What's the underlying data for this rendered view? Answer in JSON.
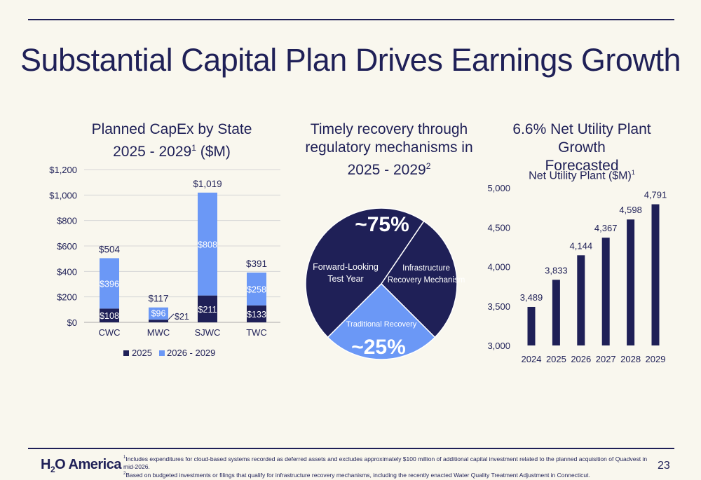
{
  "slide": {
    "title": "Substantial Capital Plan Drives Earnings Growth",
    "page_number": "23",
    "logo": {
      "part1": "H",
      "sub": "2",
      "part2": "O America"
    }
  },
  "colors": {
    "navy": "#1f2057",
    "light_blue": "#6b98f6",
    "background": "#f9f7ee"
  },
  "capex": {
    "title_line1": "Planned CapEx by State",
    "title_line2_pre": "2025 - 2029",
    "title_sup": "1",
    "title_line2_post": " ($M)"
  },
  "recovery": {
    "title_line1": "Timely recovery through",
    "title_line2": "regulatory mechanisms in",
    "title_line3_pre": "2025 - 2029",
    "title_sup": "2",
    "big_top": "~75%",
    "big_bottom": "~25%",
    "label_forward_1": "Forward-Looking",
    "label_forward_2": "Test Year",
    "label_infra_1": "Infrastructure",
    "label_infra_2": "Recovery Mechanism",
    "label_traditional": "Traditional Recovery"
  },
  "plant": {
    "title_line1": "6.6% Net Utility Plant Growth",
    "title_line2": "Forecasted",
    "subtitle_pre": "Net Utility Plant ($M)",
    "subtitle_sup": "1"
  },
  "footnotes": {
    "n1_sup": "1",
    "n1_text": "Includes expenditures for cloud-based systems recorded as deferred assets and excludes approximately $100 million of additional capital investment related to the planned acquisition of Quadvest in mid-2026.",
    "n2_sup": "2",
    "n2_text": "Based on budgeted investments or filings that qualify for infrastructure recovery mechanisms, including the recently enacted Water Quality Treatment Adjustment in Connecticut."
  },
  "chart_data": [
    {
      "type": "bar",
      "stacked": true,
      "categories": [
        "CWC",
        "MWC",
        "SJWC",
        "TWC"
      ],
      "series": [
        {
          "name": "2025",
          "values": [
            108,
            21,
            211,
            133
          ],
          "labels": [
            "$108",
            "$21",
            "$211",
            "$133"
          ],
          "color": "#1f2057"
        },
        {
          "name": "2026 - 2029",
          "values": [
            396,
            96,
            808,
            258
          ],
          "labels": [
            "$396",
            "$96",
            "$808",
            "$258"
          ],
          "color": "#6b98f6"
        }
      ],
      "totals": [
        "$504",
        "$117",
        "$1,019",
        "$391"
      ],
      "ylim": [
        0,
        1200
      ],
      "yticks": [
        "$0",
        "$200",
        "$400",
        "$600",
        "$800",
        "$1,000",
        "$1,200"
      ],
      "grid": true,
      "legend": "bottom"
    },
    {
      "type": "pie",
      "slices": [
        {
          "name": "Forward-Looking Test Year",
          "value": 47,
          "color": "#1f2057"
        },
        {
          "name": "Infrastructure Recovery Mechanism",
          "value": 28,
          "color": "#1f2057"
        },
        {
          "name": "Traditional Recovery",
          "value": 25,
          "color": "#6b98f6"
        }
      ]
    },
    {
      "type": "bar",
      "categories": [
        "2024",
        "2025",
        "2026",
        "2027",
        "2028",
        "2029"
      ],
      "values": [
        3489,
        3833,
        4144,
        4367,
        4598,
        4791
      ],
      "labels": [
        "3,489",
        "3,833",
        "4,144",
        "4,367",
        "4,598",
        "4,791"
      ],
      "ylim": [
        3000,
        5000
      ],
      "yticks": [
        "3,000",
        "3,500",
        "4,000",
        "4,500",
        "5,000"
      ],
      "color": "#1f2057",
      "grid": false
    }
  ]
}
